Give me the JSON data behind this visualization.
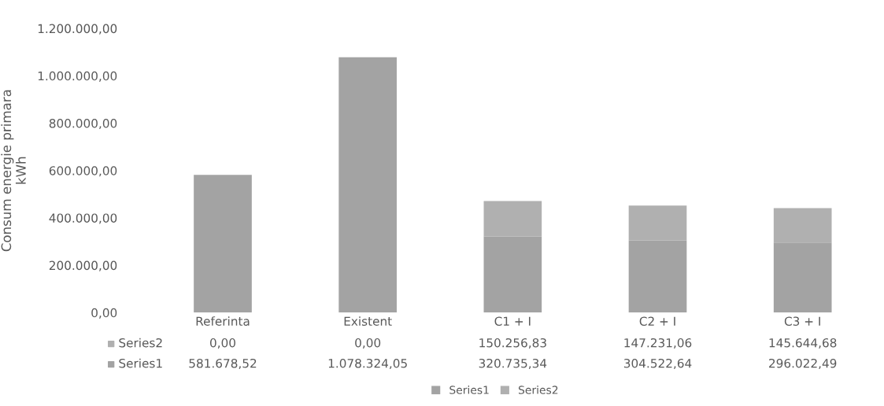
{
  "chart_data": {
    "type": "bar",
    "stacked": true,
    "categories": [
      "Referinta",
      "Existent",
      "C1 + I",
      "C2 + I",
      "C3 + I"
    ],
    "ylabel": "Consum energie primara\nkWh",
    "series": [
      {
        "name": "Series1",
        "color": "#a3a3a3",
        "values": [
          581678.52,
          1078324.05,
          320735.34,
          304522.64,
          296022.49
        ],
        "value_labels": [
          "581.678,52",
          "1.078.324,05",
          "320.735,34",
          "304.522,64",
          "296.022,49"
        ]
      },
      {
        "name": "Series2",
        "color": "#b0b0b0",
        "values": [
          0,
          0,
          150256.83,
          147231.06,
          145644.68
        ],
        "value_labels": [
          "0,00",
          "0,00",
          "150.256,83",
          "147.231,06",
          "145.644,68"
        ]
      }
    ],
    "ylim": [
      0,
      1200000
    ],
    "yticks": [
      {
        "value": 0,
        "label": "0,00"
      },
      {
        "value": 200000,
        "label": "200.000,00"
      },
      {
        "value": 400000,
        "label": "400.000,00"
      },
      {
        "value": 600000,
        "label": "600.000,00"
      },
      {
        "value": 800000,
        "label": "800.000,00"
      },
      {
        "value": 1000000,
        "label": "1.000.000,00"
      },
      {
        "value": 1200000,
        "label": "1.200.000,00"
      }
    ],
    "grid": false,
    "legend": "bottom"
  }
}
